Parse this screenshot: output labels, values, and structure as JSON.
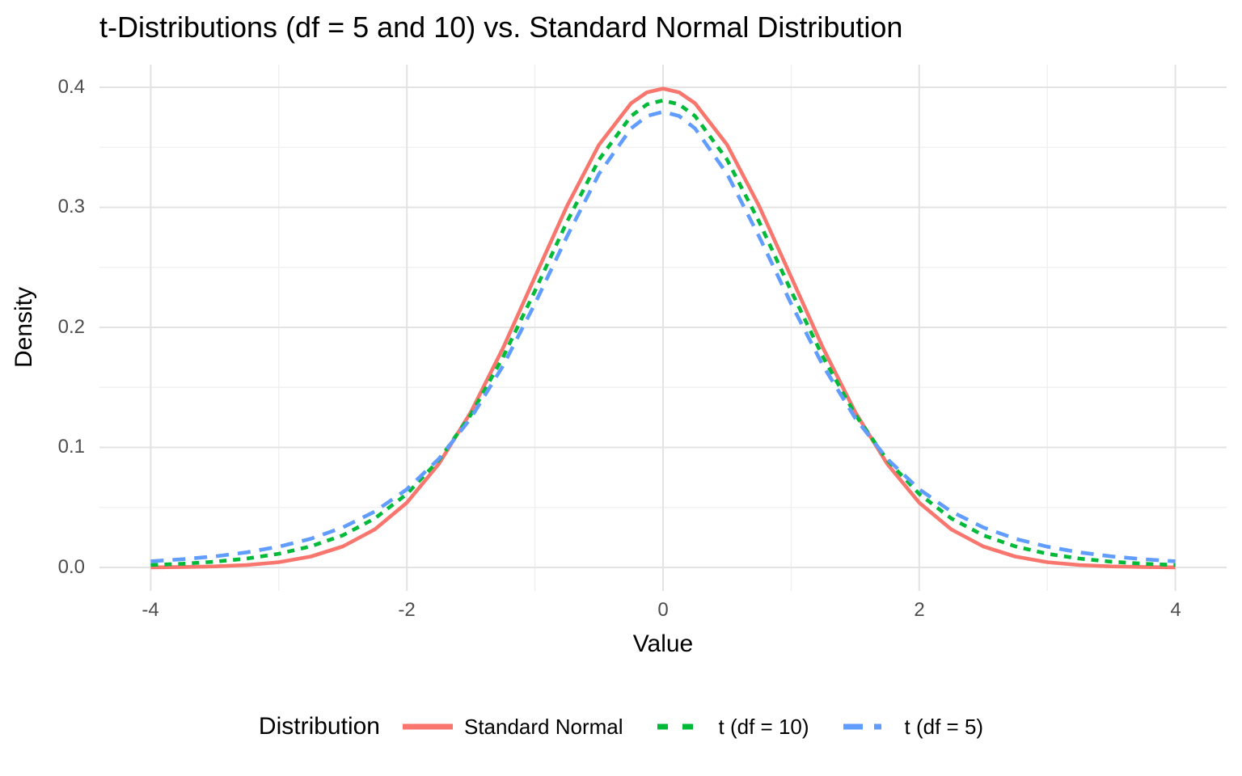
{
  "title": "t-Distributions (df = 5 and 10) vs. Standard Normal Distribution",
  "axes": {
    "x_label": "Value",
    "y_label": "Density",
    "x_ticks": [
      "-4",
      "-2",
      "0",
      "2",
      "4"
    ],
    "y_ticks": [
      "0.0",
      "0.1",
      "0.2",
      "0.3",
      "0.4"
    ]
  },
  "legend": {
    "title": "Distribution",
    "entries": [
      {
        "label": "Standard Normal",
        "color": "#F8766D",
        "linetype": "solid"
      },
      {
        "label": "t (df = 10)",
        "color": "#00BA38",
        "linetype": "dotted"
      },
      {
        "label": "t (df = 5)",
        "color": "#619CFF",
        "linetype": "dashed"
      }
    ]
  },
  "colors": {
    "background": "#FFFFFF",
    "grid_major": "#E3E3E3",
    "grid_minor": "#EFEFEF",
    "tick_label": "#4D4D4D",
    "text": "#000000",
    "series_red": "#F8766D",
    "series_green": "#00BA38",
    "series_blue": "#619CFF"
  },
  "chart_data": {
    "type": "line",
    "title": "t-Distributions (df = 5 and 10) vs. Standard Normal Distribution",
    "xlabel": "Value",
    "ylabel": "Density",
    "xlim": [
      -4,
      4
    ],
    "ylim": [
      0,
      0.4
    ],
    "x_ticks": [
      -4,
      -2,
      0,
      2,
      4
    ],
    "y_ticks": [
      0,
      0.1,
      0.2,
      0.3,
      0.4
    ],
    "x_minor": [
      -3,
      -1,
      1,
      3
    ],
    "y_minor": [
      0.05,
      0.15,
      0.25,
      0.35
    ],
    "grid": true,
    "legend_position": "bottom",
    "x": [
      -4,
      -3.75,
      -3.5,
      -3.25,
      -3,
      -2.75,
      -2.5,
      -2.25,
      -2,
      -1.75,
      -1.5,
      -1.25,
      -1,
      -0.75,
      -0.5,
      -0.25,
      -0.125,
      0,
      0.125,
      0.25,
      0.5,
      0.75,
      1,
      1.25,
      1.5,
      1.75,
      2,
      2.25,
      2.5,
      2.75,
      3,
      3.25,
      3.5,
      3.75,
      4
    ],
    "series": [
      {
        "name": "Standard Normal",
        "color": "#F8766D",
        "linetype": "solid",
        "peak": 0.3989,
        "values": [
          0.0001,
          0.0004,
          0.0009,
          0.002,
          0.0044,
          0.0091,
          0.0175,
          0.0317,
          0.054,
          0.0863,
          0.1295,
          0.1826,
          0.242,
          0.3011,
          0.3521,
          0.3867,
          0.3958,
          0.3989,
          0.3958,
          0.3867,
          0.3521,
          0.3011,
          0.242,
          0.1826,
          0.1295,
          0.0863,
          0.054,
          0.0317,
          0.0175,
          0.0091,
          0.0044,
          0.002,
          0.0009,
          0.0004,
          0.0001
        ]
      },
      {
        "name": "t (df = 10)",
        "color": "#00BA38",
        "linetype": "dotted",
        "peak": 0.3891,
        "values": [
          0.002,
          0.0031,
          0.0048,
          0.0074,
          0.0114,
          0.0176,
          0.0268,
          0.0409,
          0.0612,
          0.0895,
          0.1274,
          0.1751,
          0.2304,
          0.288,
          0.3397,
          0.376,
          0.3858,
          0.3891,
          0.3858,
          0.376,
          0.3397,
          0.288,
          0.2304,
          0.1751,
          0.1274,
          0.0895,
          0.0612,
          0.0409,
          0.0268,
          0.0176,
          0.0114,
          0.0074,
          0.0048,
          0.0031,
          0.002
        ]
      },
      {
        "name": "t (df = 5)",
        "color": "#619CFF",
        "linetype": "dashed",
        "peak": 0.3796,
        "values": [
          0.0051,
          0.0069,
          0.0092,
          0.0126,
          0.0173,
          0.0239,
          0.0333,
          0.0466,
          0.0651,
          0.0905,
          0.1245,
          0.1679,
          0.2197,
          0.2757,
          0.3279,
          0.3657,
          0.3761,
          0.3796,
          0.3761,
          0.3657,
          0.3279,
          0.2757,
          0.2197,
          0.1679,
          0.1245,
          0.0905,
          0.0651,
          0.0466,
          0.0333,
          0.0239,
          0.0173,
          0.0126,
          0.0092,
          0.0069,
          0.0051
        ]
      }
    ]
  }
}
